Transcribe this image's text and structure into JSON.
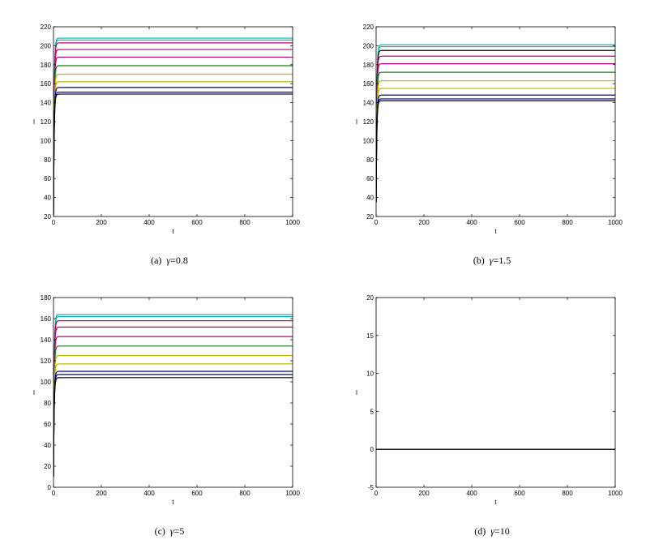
{
  "chart_data": [
    {
      "type": "line",
      "caption_prefix": "(a)",
      "caption_symbol": "γ",
      "caption_value": "=0.8",
      "xlabel": "t",
      "ylabel": "I",
      "xlim": [
        0,
        1000
      ],
      "ylim": [
        20,
        220
      ],
      "xticks": [
        0,
        200,
        400,
        600,
        800,
        1000
      ],
      "yticks": [
        20,
        40,
        60,
        80,
        100,
        120,
        140,
        160,
        180,
        200,
        220
      ],
      "grid": false,
      "start": 22,
      "rise_t": 15,
      "series": [
        {
          "color": "#00b5b5",
          "values": 208
        },
        {
          "color": "#00b5b5",
          "values": 206
        },
        {
          "color": "#b8006e",
          "values": 203
        },
        {
          "color": "#b8006e",
          "values": 196
        },
        {
          "color": "#b8006e",
          "values": 188
        },
        {
          "color": "#1a7a1a",
          "values": 179
        },
        {
          "color": "#b8b800",
          "values": 170
        },
        {
          "color": "#b8b800",
          "values": 162
        },
        {
          "color": "#00008b",
          "values": 156
        },
        {
          "color": "#00008b",
          "values": 151
        },
        {
          "color": "#000000",
          "values": 149
        }
      ]
    },
    {
      "type": "line",
      "caption_prefix": "(b)",
      "caption_symbol": "γ",
      "caption_value": "=1.5",
      "xlabel": "t",
      "ylabel": "I",
      "xlim": [
        0,
        1000
      ],
      "ylim": [
        20,
        220
      ],
      "xticks": [
        0,
        200,
        400,
        600,
        800,
        1000
      ],
      "yticks": [
        20,
        40,
        60,
        80,
        100,
        120,
        140,
        160,
        180,
        200,
        220
      ],
      "grid": false,
      "start": 35,
      "rise_t": 15,
      "series": [
        {
          "color": "#00b5b5",
          "values": 201
        },
        {
          "color": "#00b5b5",
          "values": 199
        },
        {
          "color": "#000000",
          "values": 195
        },
        {
          "color": "#b8006e",
          "values": 189
        },
        {
          "color": "#b8006e",
          "values": 181
        },
        {
          "color": "#1a7a1a",
          "values": 172
        },
        {
          "color": "#b8b800",
          "values": 163
        },
        {
          "color": "#b8b800",
          "values": 155
        },
        {
          "color": "#00008b",
          "values": 148
        },
        {
          "color": "#00008b",
          "values": 144
        },
        {
          "color": "#000000",
          "values": 142
        }
      ]
    },
    {
      "type": "line",
      "caption_prefix": "(c)",
      "caption_symbol": "γ",
      "caption_value": "=5",
      "xlabel": "t",
      "ylabel": "I",
      "xlim": [
        0,
        1000
      ],
      "ylim": [
        0,
        180
      ],
      "xticks": [
        0,
        200,
        400,
        600,
        800,
        1000
      ],
      "yticks": [
        0,
        20,
        40,
        60,
        80,
        100,
        120,
        140,
        160,
        180
      ],
      "grid": false,
      "start": 10,
      "rise_t": 15,
      "series": [
        {
          "color": "#00b5b5",
          "values": 164
        },
        {
          "color": "#00b5b5",
          "values": 162
        },
        {
          "color": "#b8006e",
          "values": 158
        },
        {
          "color": "#b8006e",
          "values": 152
        },
        {
          "color": "#b8006e",
          "values": 143
        },
        {
          "color": "#1a7a1a",
          "values": 134
        },
        {
          "color": "#b8b800",
          "values": 125
        },
        {
          "color": "#b8b800",
          "values": 117
        },
        {
          "color": "#00008b",
          "values": 110
        },
        {
          "color": "#00008b",
          "values": 107
        },
        {
          "color": "#000000",
          "values": 104
        }
      ]
    },
    {
      "type": "line",
      "caption_prefix": "(d)",
      "caption_symbol": "γ",
      "caption_value": "=10",
      "xlabel": "t",
      "ylabel": "I",
      "xlim": [
        0,
        1000
      ],
      "ylim": [
        -5,
        20
      ],
      "xticks": [
        0,
        200,
        400,
        600,
        800,
        1000
      ],
      "yticks": [
        -5,
        0,
        5,
        10,
        15,
        20
      ],
      "grid": false,
      "start": 0,
      "rise_t": 0,
      "series": [
        {
          "color": "#1a7a1a",
          "values": 0
        },
        {
          "color": "#b8006e",
          "values": 0
        },
        {
          "color": "#000000",
          "values": 0
        }
      ]
    }
  ]
}
